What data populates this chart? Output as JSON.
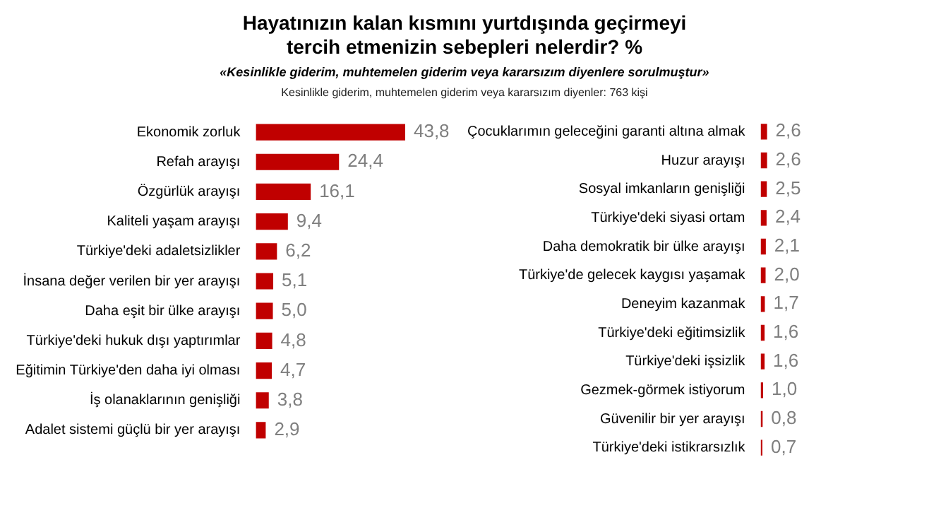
{
  "chart_data": [
    {
      "type": "bar",
      "orientation": "horizontal",
      "title": "Hayatınızın kalan kısmını yurtdışında geçirmeyi tercih etmenizin sebepleri nelerdir? %",
      "subtitle": "«Kesinlikle giderim, muhtemelen giderim veya kararsızım diyenlere sorulmuştur»",
      "annotations": [
        "Kesinlikle giderim, muhtemelen giderim veya kararsızım diyenler: 763 kişi"
      ],
      "categories": [
        "Ekonomik zorluk",
        "Refah arayışı",
        "Özgürlük arayışı",
        "Kaliteli yaşam arayışı",
        "Türkiye'deki adaletsizlikler",
        "İnsana değer verilen bir yer arayışı",
        "Daha eşit bir ülke arayışı",
        "Türkiye'deki hukuk dışı yaptırımlar",
        "Eğitimin Türkiye'den daha iyi olması",
        "İş olanaklarının genişliği",
        "Adalet sistemi güçlü bir yer arayışı"
      ],
      "values": [
        43.8,
        24.4,
        16.1,
        9.4,
        6.2,
        5.1,
        5.0,
        4.8,
        4.7,
        3.8,
        2.9
      ],
      "value_labels": [
        "43,8",
        "24,4",
        "16,1",
        "9,4",
        "6,2",
        "5,1",
        "5,0",
        "4,8",
        "4,7",
        "3,8",
        "2,9"
      ],
      "color": "#c00000",
      "tick_labels": "y",
      "legend": false
    },
    {
      "type": "bar",
      "orientation": "horizontal",
      "categories": [
        "Çocuklarımın geleceğini garanti altına almak",
        "Huzur arayışı",
        "Sosyal imkanların genişliği",
        "Türkiye'deki siyasi ortam",
        "Daha demokratik bir ülke arayışı",
        "Türkiye'de gelecek kaygısı yaşamak",
        "Deneyim kazanmak",
        "Türkiye'deki eğitimsizlik",
        "Türkiye'deki işsizlik",
        "Gezmek-görmek istiyorum",
        "Güvenilir bir yer arayışı",
        "Türkiye'deki istikrarsızlık"
      ],
      "values": [
        2.6,
        2.6,
        2.5,
        2.4,
        2.1,
        2.0,
        1.7,
        1.6,
        1.6,
        1.0,
        0.8,
        0.7
      ],
      "value_labels": [
        "2,6",
        "2,6",
        "2,5",
        "2,4",
        "2,1",
        "2,0",
        "1,7",
        "1,6",
        "1,6",
        "1,0",
        "0,8",
        "0,7"
      ],
      "color": "#c00000",
      "tick_labels": "y",
      "legend": false
    }
  ]
}
